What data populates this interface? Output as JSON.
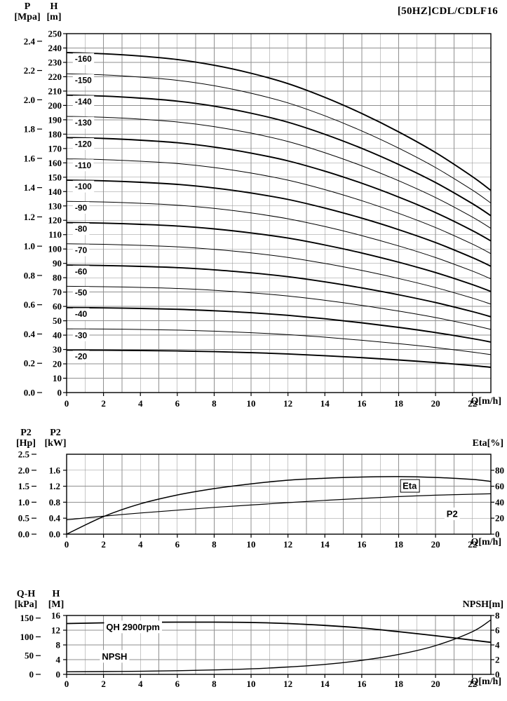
{
  "title": "[50HZ]CDL/CDLF16",
  "headers": {
    "main_left1_symbol": "P",
    "main_left1_unit": "[Mpa]",
    "main_left2_symbol": "H",
    "main_left2_unit": "[m]",
    "mid_left1_symbol": "P2",
    "mid_left1_unit": "[Hp]",
    "mid_left2_symbol": "P2",
    "mid_left2_unit": "[kW]",
    "mid_right": "Eta[%]",
    "bot_left1_symbol": "Q-H",
    "bot_left1_unit": "[kPa]",
    "bot_left2_symbol": "H",
    "bot_left2_unit": "[M]",
    "bot_right": "NPSH[m]",
    "x_label": "Q[m/h]"
  },
  "colors": {
    "curve": "#000000",
    "grid": "#8f8f8f",
    "border": "#000000",
    "background": "#ffffff"
  },
  "chart_data": [
    {
      "type": "line",
      "name": "Q-H performance curves per stage count",
      "title": "[50HZ]CDL/CDLF16",
      "x": {
        "label": "Q[m/h]",
        "min": 0,
        "max": 23,
        "grid_step": 1,
        "tick_values": [
          0,
          2,
          4,
          6,
          8,
          10,
          12,
          14,
          16,
          18,
          20,
          22
        ]
      },
      "grid_h_from_axis": "y_left_inner",
      "y_left_outer": {
        "name": "P [Mpa]",
        "values": [
          0,
          0.2,
          0.4,
          0.6,
          0.8,
          1,
          1.2,
          1.4,
          1.6,
          1.8,
          2,
          2.2,
          2.4
        ],
        "labels": [
          "0.0",
          "0.2",
          "0.4",
          "0.6",
          "0.8",
          "1.0",
          "1.2",
          "1.4",
          "1.6",
          "1.8",
          "2.0",
          "2.2",
          "2.4"
        ],
        "fraction_factor": 0.40788
      },
      "y_left_inner": {
        "name": "H [m]",
        "values": [
          0,
          10,
          20,
          30,
          40,
          50,
          60,
          70,
          80,
          90,
          100,
          110,
          120,
          130,
          140,
          150,
          160,
          170,
          180,
          190,
          200,
          210,
          220,
          230,
          240,
          250
        ],
        "fraction_factor": 0.004
      },
      "base_curve": {
        "q": [
          0,
          2,
          4,
          6,
          8,
          10,
          12,
          14,
          16,
          18,
          20,
          22,
          23
        ],
        "h_per_stage": [
          14.8,
          14.75,
          14.65,
          14.5,
          14.25,
          13.9,
          13.45,
          12.85,
          12.15,
          11.35,
          10.45,
          9.4,
          8.8
        ],
        "fraction_factor": 0.004
      },
      "stages": [
        {
          "label": "-160",
          "multiplier": 16
        },
        {
          "label": "-150",
          "multiplier": 15
        },
        {
          "label": "-140",
          "multiplier": 14
        },
        {
          "label": "-130",
          "multiplier": 13
        },
        {
          "label": "-120",
          "multiplier": 12
        },
        {
          "label": "-110",
          "multiplier": 11
        },
        {
          "label": "-100",
          "multiplier": 10
        },
        {
          "label": "-90",
          "multiplier": 9
        },
        {
          "label": "-80",
          "multiplier": 8
        },
        {
          "label": "-70",
          "multiplier": 7
        },
        {
          "label": "-60",
          "multiplier": 6
        },
        {
          "label": "-50",
          "multiplier": 5
        },
        {
          "label": "-40",
          "multiplier": 4
        },
        {
          "label": "-30",
          "multiplier": 3
        },
        {
          "label": "-20",
          "multiplier": 2
        }
      ]
    },
    {
      "type": "line",
      "name": "shaft power P2 and efficiency Eta",
      "x": {
        "label": "Q[m/h]",
        "min": 0,
        "max": 23,
        "grid_step": 1,
        "tick_values": [
          0,
          2,
          4,
          6,
          8,
          10,
          12,
          14,
          16,
          18,
          20,
          22
        ]
      },
      "grid_h_from_axis": "y_eta",
      "y_hp": {
        "name": "P2 [Hp]",
        "values": [
          0,
          0.5,
          1,
          1.5,
          2,
          2.5
        ],
        "labels": [
          "0.0",
          "0.5",
          "1.0",
          "1.5",
          "2.0",
          "2.5"
        ],
        "fraction_factor": 0.4
      },
      "y_kw": {
        "name": "P2 [kW]",
        "values": [
          0,
          0.4,
          0.8,
          1.2,
          1.6
        ],
        "labels": [
          "0.0",
          "0.4",
          "0.8",
          "1.2",
          "1.6"
        ],
        "fraction_factor": 0.5
      },
      "y_eta": {
        "name": "Eta [%]",
        "values": [
          0,
          20,
          40,
          60,
          80
        ],
        "fraction_factor": 0.01
      },
      "series": [
        {
          "name": "Eta",
          "q": [
            0,
            2,
            4,
            6,
            8,
            10,
            12,
            14,
            16,
            18,
            20,
            22,
            23
          ],
          "values": [
            0,
            22,
            38,
            49,
            57,
            63,
            67.5,
            70,
            71.5,
            72,
            71,
            68.5,
            66
          ],
          "fraction_factor": 0.01,
          "width": 1.5
        },
        {
          "name": "P2",
          "q": [
            0,
            2,
            4,
            6,
            8,
            10,
            12,
            14,
            16,
            18,
            20,
            22,
            23
          ],
          "values": [
            0.36,
            0.45,
            0.53,
            0.6,
            0.67,
            0.73,
            0.79,
            0.845,
            0.895,
            0.94,
            0.975,
            1.0,
            1.01
          ],
          "fraction_factor": 0.5,
          "width": 1.2
        }
      ],
      "annotations": [
        {
          "text": "Eta",
          "q": 18.6,
          "fy": 0.6,
          "boxed": true
        },
        {
          "text": "P2",
          "q": 20.9,
          "fy": 0.25,
          "boxed": false
        }
      ]
    },
    {
      "type": "line",
      "name": "single stage QH at 2900rpm and NPSH",
      "x": {
        "label": "Q[m/h]",
        "min": 0,
        "max": 23,
        "grid_step": 1,
        "tick_values": [
          0,
          2,
          4,
          6,
          8,
          10,
          12,
          14,
          16,
          18,
          20,
          22
        ]
      },
      "grid_h_from_axis": "y_hm",
      "y_kpa": {
        "name": "Q-H [kPa]",
        "values": [
          0,
          50,
          100,
          150
        ],
        "fraction_factor": 0.0063731
      },
      "y_hm": {
        "name": "H [M]",
        "values": [
          0,
          4,
          8,
          12,
          16
        ],
        "fraction_factor": 0.0625
      },
      "y_npsh": {
        "name": "NPSH [m]",
        "values": [
          0,
          2,
          4,
          6,
          8
        ],
        "fraction_factor": 0.125
      },
      "series": [
        {
          "name": "QH 2900rpm",
          "q": [
            0,
            2,
            4,
            6,
            8,
            10,
            12,
            14,
            16,
            18,
            20,
            22,
            23
          ],
          "values": [
            13.8,
            14.0,
            14.15,
            14.2,
            14.2,
            14.1,
            13.8,
            13.3,
            12.6,
            11.6,
            10.5,
            9.3,
            8.7
          ],
          "fraction_factor": 0.0625,
          "width": 1.8
        },
        {
          "name": "NPSH",
          "q": [
            0,
            2,
            4,
            6,
            8,
            10,
            12,
            14,
            16,
            18,
            20,
            22,
            23
          ],
          "values": [
            0.35,
            0.38,
            0.42,
            0.5,
            0.6,
            0.75,
            1.0,
            1.35,
            1.9,
            2.7,
            3.9,
            5.8,
            7.4
          ],
          "fraction_factor": 0.125,
          "width": 1.4
        }
      ],
      "annotations": [
        {
          "text": "QH 2900rpm",
          "q": 3.6,
          "fy": 0.8,
          "boxed": false
        },
        {
          "text": "NPSH",
          "q": 2.6,
          "fy": 0.3,
          "boxed": false
        }
      ]
    }
  ]
}
